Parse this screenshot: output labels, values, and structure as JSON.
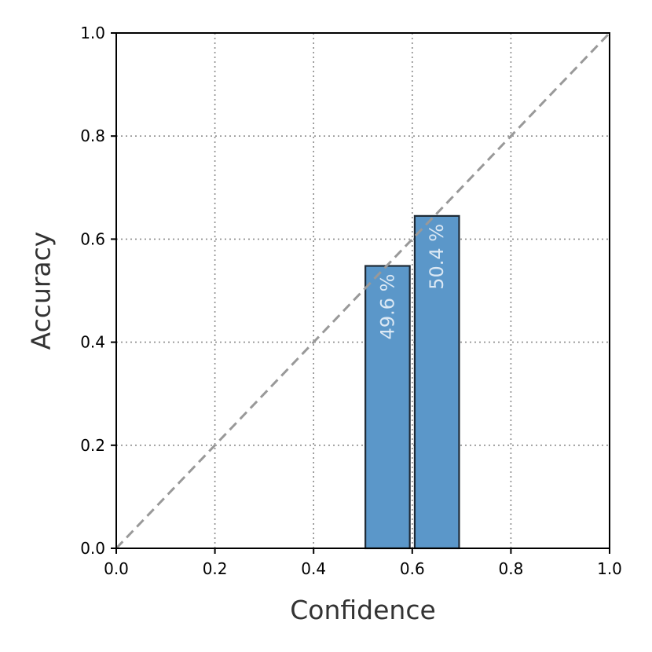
{
  "chart_data": {
    "type": "bar",
    "xlabel": "Confidence",
    "ylabel": "Accuracy",
    "xlim": [
      0.0,
      1.0
    ],
    "ylim": [
      0.0,
      1.0
    ],
    "x_ticks": [
      "0.0",
      "0.2",
      "0.4",
      "0.6",
      "0.8",
      "1.0"
    ],
    "y_ticks": [
      "0.0",
      "0.2",
      "0.4",
      "0.6",
      "0.8",
      "1.0"
    ],
    "grid": true,
    "reference_line": "diagonal",
    "bar_color": "#5b97c9",
    "bars": [
      {
        "x_start": 0.505,
        "x_end": 0.595,
        "accuracy": 0.548,
        "label": "49.6 %"
      },
      {
        "x_start": 0.605,
        "x_end": 0.695,
        "accuracy": 0.645,
        "label": "50.4 %"
      }
    ]
  }
}
